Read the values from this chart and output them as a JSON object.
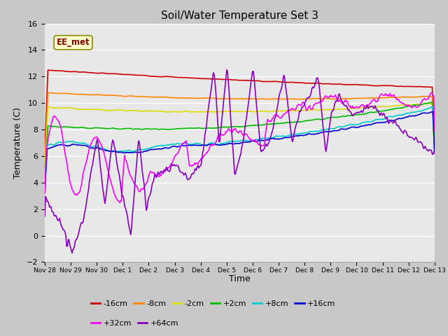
{
  "title": "Soil/Water Temperature Set 3",
  "xlabel": "Time",
  "ylabel": "Temperature (C)",
  "ylim": [
    -2,
    16
  ],
  "yticks": [
    -2,
    0,
    2,
    4,
    6,
    8,
    10,
    12,
    14,
    16
  ],
  "annotation_text": "EE_met",
  "fig_facecolor": "#c8c8c8",
  "axes_facecolor": "#e8e8e8",
  "colors": {
    "-16cm": "#cc0000",
    "-8cm": "#ff8800",
    "-2cm": "#dddd00",
    "+2cm": "#00bb00",
    "+8cm": "#00cccc",
    "+16cm": "#0000cc",
    "+32cm": "#ff00ff",
    "+64cm": "#8800bb"
  },
  "tick_labels": [
    "Nov 28",
    "Nov 29",
    "Nov 30",
    "Dec 1",
    "Dec 2",
    "Dec 3",
    "Dec 4",
    "Dec 5",
    "Dec 6",
    "Dec 7",
    "Dec 8",
    "Dec 9",
    "Dec 10",
    "Dec 11",
    "Dec 12",
    "Dec 13"
  ],
  "n_points": 500
}
